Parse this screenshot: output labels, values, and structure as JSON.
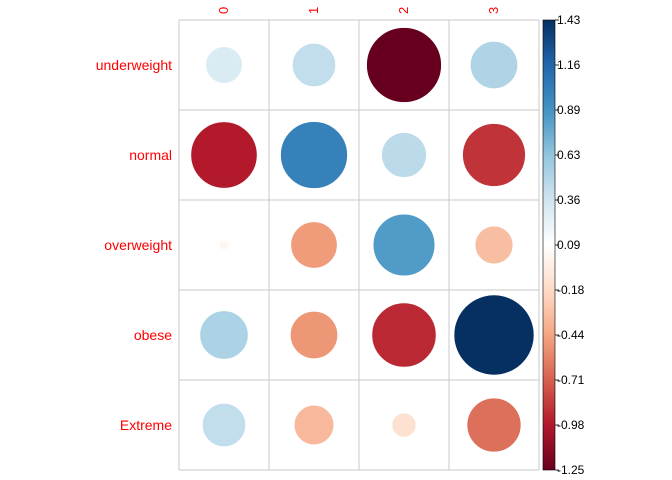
{
  "chart_data": {
    "type": "heatmap",
    "title": "",
    "rows": [
      "underweight",
      "normal",
      "overweight",
      "obese",
      "Extreme"
    ],
    "columns": [
      "0",
      "1",
      "2",
      "3"
    ],
    "values": [
      [
        0.3,
        0.42,
        -1.25,
        0.5
      ],
      [
        -0.98,
        1.0,
        0.45,
        -0.88
      ],
      [
        0.02,
        -0.48,
        0.85,
        -0.32
      ],
      [
        0.52,
        -0.5,
        -0.92,
        1.43
      ],
      [
        0.42,
        -0.35,
        -0.13,
        -0.65
      ]
    ],
    "colorbar": {
      "min": -1.25,
      "max": 1.43,
      "ticks": [
        "1.43",
        "1.16",
        "0.89",
        "0.63",
        "0.36",
        "0.09",
        "-0.18",
        "-0.44",
        "-0.71",
        "-0.98",
        "-1.25"
      ],
      "palette": [
        "#67001f",
        "#b2182b",
        "#d6604d",
        "#f4a582",
        "#fddbc7",
        "#ffffff",
        "#d1e5f0",
        "#92c5de",
        "#4393c3",
        "#2166ac",
        "#053061"
      ]
    },
    "grid": true,
    "label_color": "#ff0000"
  }
}
